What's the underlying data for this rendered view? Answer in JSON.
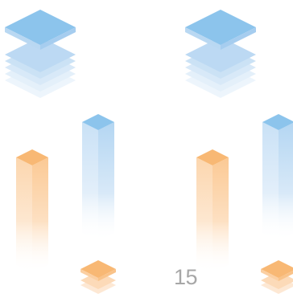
{
  "page_number": "15",
  "colors": {
    "blue_accent": "#8cc4ec",
    "orange_accent": "#f8b874",
    "text": "#a7a7a7",
    "background": "#ffffff"
  },
  "icons": [
    "layer-stack-icon",
    "isometric-bar-icon",
    "layer-stack-icon-small"
  ]
}
